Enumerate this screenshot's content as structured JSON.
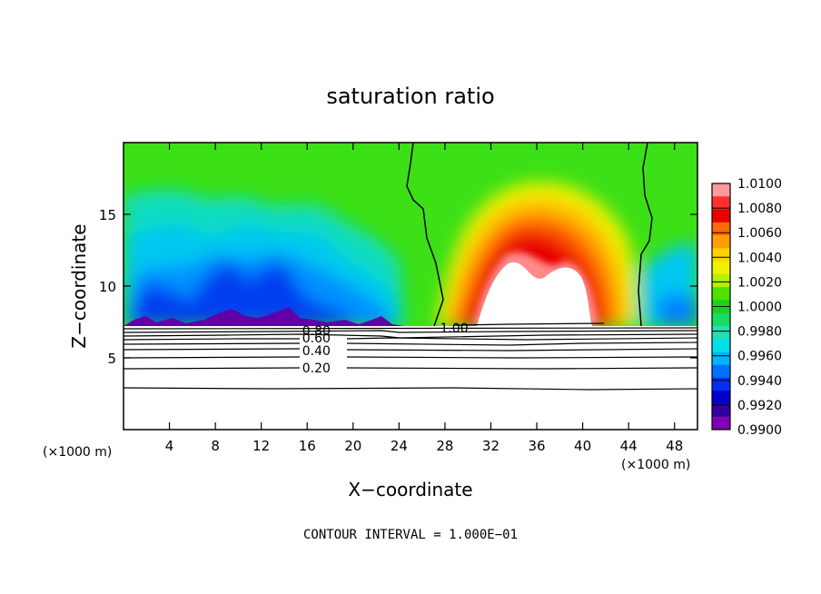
{
  "chart_data": {
    "type": "heatmap",
    "title": "saturation ratio",
    "xlabel": "X−coordinate",
    "ylabel": "Z−coordinate",
    "x_unit_left": "(×1000 m)",
    "x_unit_right": "(×1000 m)",
    "xlim": [
      0,
      50
    ],
    "ylim": [
      0,
      20
    ],
    "xticks": [
      4,
      8,
      12,
      16,
      20,
      24,
      28,
      32,
      36,
      40,
      44,
      48
    ],
    "yticks": [
      5,
      10,
      15
    ],
    "colorbar": {
      "labels": [
        "1.0100",
        "1.0080",
        "1.0060",
        "1.0040",
        "1.0020",
        "1.0000",
        "0.9980",
        "0.9960",
        "0.9940",
        "0.9920",
        "0.9900"
      ],
      "colors": [
        "#ff9a9a",
        "#ff3030",
        "#e80000",
        "#ff6a00",
        "#ff9e00",
        "#ffd200",
        "#f0f000",
        "#b4f000",
        "#50e000",
        "#18d418",
        "#18dc64",
        "#20e0b4",
        "#00e0e8",
        "#00b4ff",
        "#0070ff",
        "#0030f0",
        "#0000c8",
        "#3000a0",
        "#8000b0"
      ]
    },
    "contour_labels": [
      {
        "text": "0.80",
        "x": 16.8,
        "z": 6.9
      },
      {
        "text": "0.60",
        "x": 16.8,
        "z": 6.4
      },
      {
        "text": "0.40",
        "x": 16.8,
        "z": 5.5
      },
      {
        "text": "0.20",
        "x": 16.8,
        "z": 4.3
      },
      {
        "text": "1.00",
        "x": 28.8,
        "z": 7.1
      }
    ],
    "footer": "CONTOUR INTERVAL = 1.000E−01"
  }
}
